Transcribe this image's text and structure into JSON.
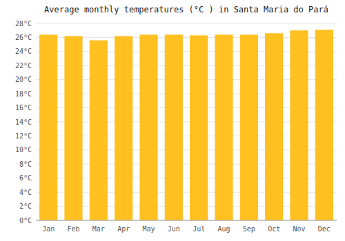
{
  "chart_data": {
    "type": "bar",
    "title": "Average monthly temperatures (°C ) in Santa Maria do Pará",
    "categories": [
      "Jan",
      "Feb",
      "Mar",
      "Apr",
      "May",
      "Jun",
      "Jul",
      "Aug",
      "Sep",
      "Oct",
      "Nov",
      "Dec"
    ],
    "values": [
      26.4,
      26.2,
      25.6,
      26.2,
      26.4,
      26.4,
      26.3,
      26.4,
      26.4,
      26.6,
      27.0,
      27.1
    ],
    "color": "#FFC020",
    "ylim": [
      0,
      28
    ],
    "yticks": [
      {
        "value": 0,
        "label": "0°C"
      },
      {
        "value": 2,
        "label": "2°C"
      },
      {
        "value": 4,
        "label": "4°C"
      },
      {
        "value": 6,
        "label": "6°C"
      },
      {
        "value": 8,
        "label": "8°C"
      },
      {
        "value": 10,
        "label": "10°C"
      },
      {
        "value": 12,
        "label": "12°C"
      },
      {
        "value": 14,
        "label": "14°C"
      },
      {
        "value": 16,
        "label": "16°C"
      },
      {
        "value": 18,
        "label": "18°C"
      },
      {
        "value": 20,
        "label": "20°C"
      },
      {
        "value": 22,
        "label": "22°C"
      },
      {
        "value": 24,
        "label": "24°C"
      },
      {
        "value": 26,
        "label": "26°C"
      },
      {
        "value": 28,
        "label": "28°C"
      }
    ],
    "grid": true
  }
}
